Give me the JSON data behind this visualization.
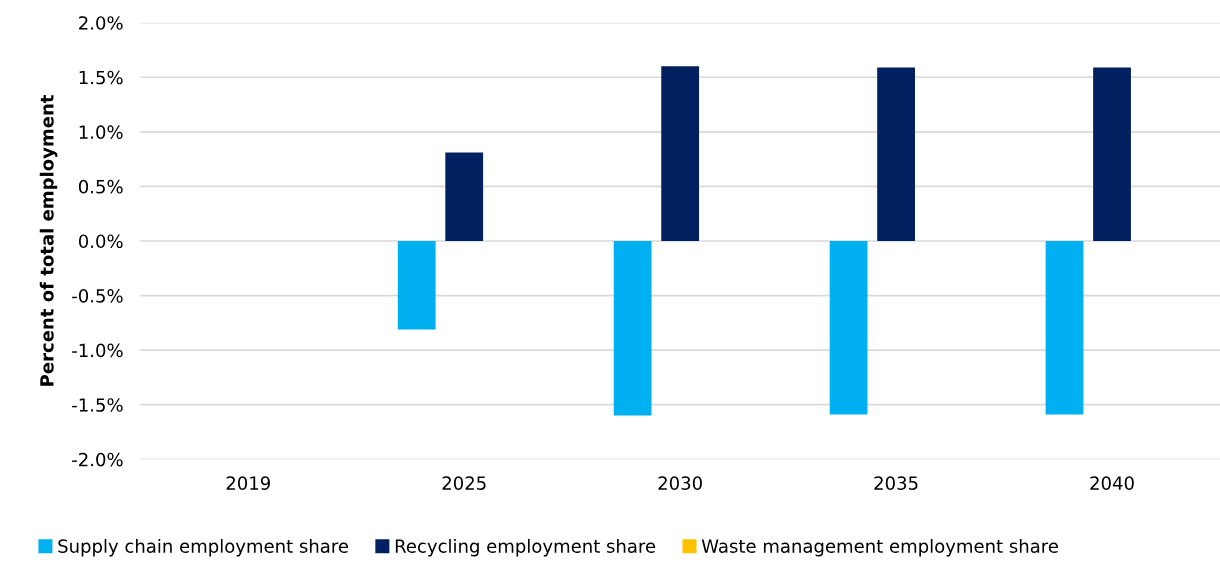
{
  "chart_data": {
    "type": "bar",
    "ylabel": "Percent of total employment",
    "categories": [
      "2019",
      "2025",
      "2030",
      "2035",
      "2040"
    ],
    "series": [
      {
        "name": "Supply chain employment share",
        "color": "#00b0f0",
        "values": [
          0,
          -0.81,
          -1.6,
          -1.59,
          -1.59
        ]
      },
      {
        "name": "Recycling employment share",
        "color": "#002060",
        "values": [
          0,
          0.81,
          1.6,
          1.59,
          1.59
        ]
      },
      {
        "name": "Waste management employment share",
        "color": "#ffc000",
        "values": [
          0,
          0,
          0,
          0,
          0
        ]
      }
    ],
    "ylim": [
      -2.0,
      2.0
    ],
    "yticks": [
      {
        "value": -2.0,
        "label": "-2.0%"
      },
      {
        "value": -1.5,
        "label": "-1.5%"
      },
      {
        "value": -1.0,
        "label": "-1.0%"
      },
      {
        "value": -0.5,
        "label": "-0.5%"
      },
      {
        "value": 0.0,
        "label": "0.0%"
      },
      {
        "value": 0.5,
        "label": "0.5%"
      },
      {
        "value": 1.0,
        "label": "1.0%"
      },
      {
        "value": 1.5,
        "label": "1.5%"
      },
      {
        "value": 2.0,
        "label": "2.0%"
      }
    ],
    "grid": "y",
    "legend": "bottom"
  }
}
